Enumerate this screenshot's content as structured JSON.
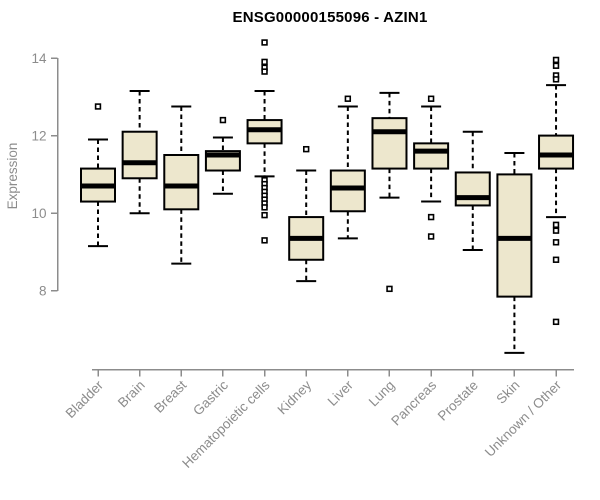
{
  "chart_data": {
    "type": "boxplot",
    "title": "ENSG00000155096 - AZIN1",
    "ylabel": "Expression",
    "xlabel": "",
    "yticks": [
      8,
      10,
      12,
      14
    ],
    "ylim": [
      6.2,
      14.5
    ],
    "grid": false,
    "legend": "none",
    "categories": [
      "Bladder",
      "Brain",
      "Breast",
      "Gastric",
      "Hematopoietic cells",
      "Kidney",
      "Liver",
      "Lung",
      "Pancreas",
      "Prostate",
      "Skin",
      "Unknown / Other"
    ],
    "boxes": [
      {
        "category": "Bladder",
        "whisker_low": 9.15,
        "q1": 10.3,
        "median": 10.7,
        "q3": 11.15,
        "whisker_high": 11.9,
        "outliers": [
          12.75
        ]
      },
      {
        "category": "Brain",
        "whisker_low": 10.0,
        "q1": 10.9,
        "median": 11.3,
        "q3": 12.1,
        "whisker_high": 13.15,
        "outliers": []
      },
      {
        "category": "Breast",
        "whisker_low": 8.7,
        "q1": 10.1,
        "median": 10.7,
        "q3": 11.5,
        "whisker_high": 12.75,
        "outliers": []
      },
      {
        "category": "Gastric",
        "whisker_low": 10.5,
        "q1": 11.1,
        "median": 11.5,
        "q3": 11.6,
        "whisker_high": 11.95,
        "outliers": [
          12.4
        ]
      },
      {
        "category": "Hematopoietic cells",
        "whisker_low": 10.95,
        "q1": 11.8,
        "median": 12.15,
        "q3": 12.4,
        "whisker_high": 13.15,
        "outliers": [
          14.4,
          13.9,
          13.75,
          13.65,
          10.85,
          10.75,
          10.65,
          10.55,
          10.45,
          10.35,
          10.25,
          10.15,
          9.95,
          9.3
        ]
      },
      {
        "category": "Kidney",
        "whisker_low": 8.25,
        "q1": 8.8,
        "median": 9.35,
        "q3": 9.9,
        "whisker_high": 11.1,
        "outliers": [
          11.65
        ]
      },
      {
        "category": "Liver",
        "whisker_low": 9.35,
        "q1": 10.05,
        "median": 10.65,
        "q3": 11.1,
        "whisker_high": 12.75,
        "outliers": [
          12.95
        ]
      },
      {
        "category": "Lung",
        "whisker_low": 10.4,
        "q1": 11.15,
        "median": 12.1,
        "q3": 12.45,
        "whisker_high": 13.1,
        "outliers": [
          8.05
        ]
      },
      {
        "category": "Pancreas",
        "whisker_low": 10.3,
        "q1": 11.15,
        "median": 11.6,
        "q3": 11.8,
        "whisker_high": 12.75,
        "outliers": [
          12.95,
          9.9,
          9.4
        ]
      },
      {
        "category": "Prostate",
        "whisker_low": 9.05,
        "q1": 10.2,
        "median": 10.4,
        "q3": 11.05,
        "whisker_high": 12.1,
        "outliers": []
      },
      {
        "category": "Skin",
        "whisker_low": 6.4,
        "q1": 7.85,
        "median": 9.35,
        "q3": 11.0,
        "whisker_high": 11.55,
        "outliers": []
      },
      {
        "category": "Unknown / Other",
        "whisker_low": 9.9,
        "q1": 11.15,
        "median": 11.5,
        "q3": 12.0,
        "whisker_high": 13.3,
        "outliers": [
          13.95,
          13.8,
          13.55,
          13.45,
          9.7,
          9.55,
          9.25,
          8.8,
          7.2
        ]
      }
    ],
    "colors": {
      "box_fill": "#EDE7CD",
      "box_border": "#000000",
      "median": "#000000",
      "whisker": "#000000",
      "outlier": "#000000",
      "axis": "#8C8C8C",
      "tick_label": "#8C8C8C",
      "title": "#000000"
    }
  }
}
